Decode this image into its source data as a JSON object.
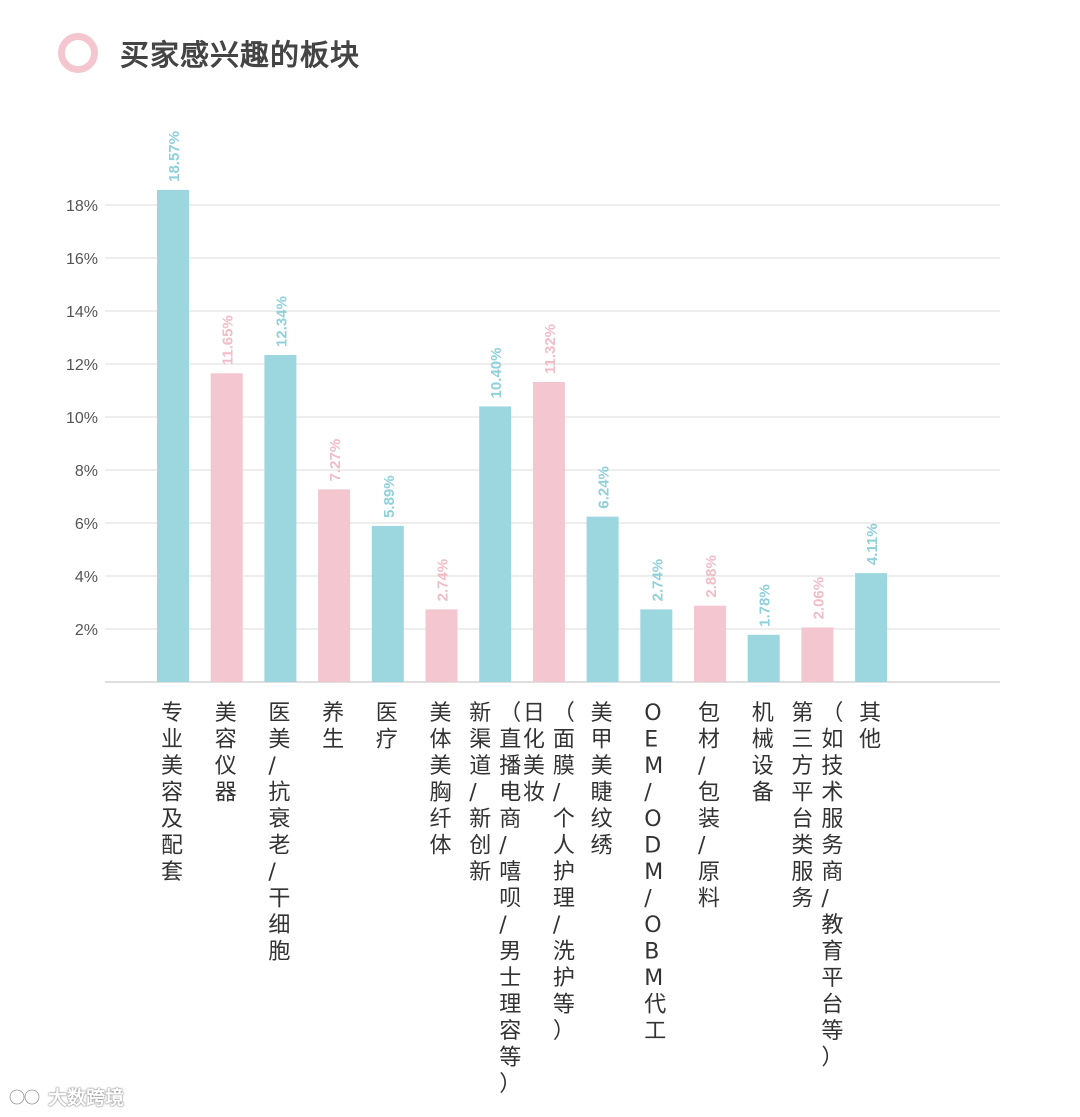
{
  "title": "买家感兴趣的板块",
  "watermark": "大数跨境",
  "colors": {
    "blue": "#9cd6df",
    "pink": "#f4c6cf",
    "blue_label": "#8fd0da",
    "pink_label": "#f2bcc7",
    "grid": "#dddddd",
    "axis_text": "#555555",
    "cat_text": "#333333"
  },
  "chart_data": {
    "type": "bar",
    "title": "买家感兴趣的板块",
    "ylim": [
      0,
      18
    ],
    "yticks": [
      2,
      4,
      6,
      8,
      10,
      12,
      14,
      16,
      18
    ],
    "ytick_labels": [
      "2%",
      "4%",
      "6%",
      "8%",
      "10%",
      "12%",
      "14%",
      "16%",
      "18%"
    ],
    "grid": true,
    "categories": [
      "专业美容及配套",
      "美容仪器",
      "医美/抗衰老/干细胞",
      "养生",
      "医疗",
      "美体美胸纤体",
      [
        "新渠道/新创新",
        "（直播电商/嘻呗/男士理容等）"
      ],
      [
        "日化美妆",
        "（面膜/个人护理/洗护等）"
      ],
      "美甲美睫纹绣",
      "OEM/ODM/OBM代工",
      "包材/包装/原料",
      "机械设备",
      [
        "第三方平台类服务",
        "（如技术服务商/教育平台等）"
      ],
      "其他"
    ],
    "values": [
      18.57,
      11.65,
      12.34,
      7.27,
      5.89,
      2.74,
      10.4,
      11.32,
      6.24,
      2.74,
      2.88,
      1.78,
      2.06,
      4.11
    ],
    "value_labels": [
      "18.57%",
      "11.65%",
      "12.34%",
      "7.27%",
      "5.89%",
      "2.74%",
      "10.40%",
      "11.32%",
      "6.24%",
      "2.74%",
      "2.88%",
      "1.78%",
      "2.06%",
      "4.11%"
    ],
    "bar_colors": [
      "blue",
      "pink",
      "blue",
      "pink",
      "blue",
      "pink",
      "blue",
      "pink",
      "blue",
      "blue",
      "pink",
      "blue",
      "pink",
      "blue"
    ]
  }
}
